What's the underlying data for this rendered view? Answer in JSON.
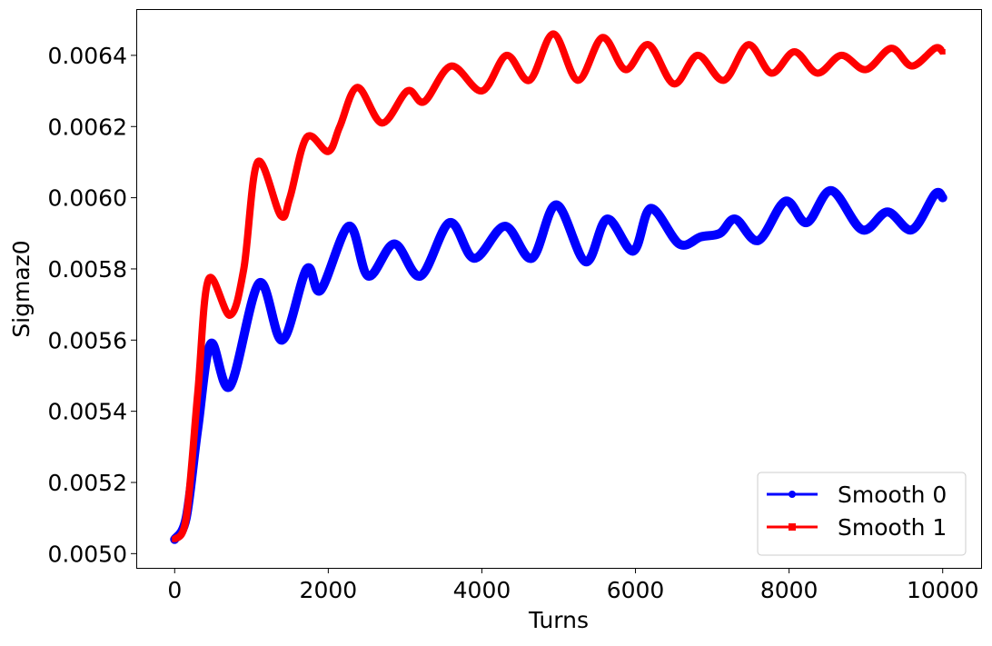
{
  "chart_data": {
    "type": "line",
    "title": "",
    "xlabel": "Turns",
    "ylabel": "Sigmaz0",
    "xlim": [
      -500,
      10500
    ],
    "ylim": [
      0.00496,
      0.00653
    ],
    "xticks": [
      0,
      2000,
      4000,
      6000,
      8000,
      10000
    ],
    "xtick_labels": [
      "0",
      "2000",
      "4000",
      "6000",
      "8000",
      "10000"
    ],
    "yticks": [
      0.005,
      0.0052,
      0.0054,
      0.0056,
      0.0058,
      0.006,
      0.0062,
      0.0064
    ],
    "ytick_labels": [
      "0.0050",
      "0.0052",
      "0.0054",
      "0.0056",
      "0.0058",
      "0.0060",
      "0.0062",
      "0.0064"
    ],
    "grid": false,
    "legend_position": "lower-right",
    "series": [
      {
        "name": "Smooth 0",
        "color": "#0000ff",
        "marker": "circle",
        "x": [
          0,
          150,
          300,
          470,
          720,
          1100,
          1400,
          1720,
          1900,
          2270,
          2520,
          2860,
          3200,
          3580,
          3900,
          4300,
          4650,
          4970,
          5350,
          5630,
          5970,
          6200,
          6570,
          6850,
          7100,
          7300,
          7600,
          7950,
          8230,
          8550,
          8950,
          9280,
          9600,
          9900,
          10000
        ],
        "y": [
          0.00504,
          0.0051,
          0.00535,
          0.00559,
          0.00547,
          0.00576,
          0.0056,
          0.0058,
          0.00574,
          0.00592,
          0.00578,
          0.00587,
          0.00578,
          0.00593,
          0.00583,
          0.00592,
          0.00583,
          0.00598,
          0.00582,
          0.00594,
          0.00585,
          0.00597,
          0.00587,
          0.00589,
          0.0059,
          0.00594,
          0.00588,
          0.00599,
          0.00593,
          0.00602,
          0.00591,
          0.00596,
          0.00591,
          0.00601,
          0.006
        ]
      },
      {
        "name": "Smooth 1",
        "color": "#ff0000",
        "marker": "square",
        "x": [
          0,
          150,
          300,
          440,
          720,
          900,
          1080,
          1380,
          1500,
          1720,
          2000,
          2150,
          2380,
          2700,
          3030,
          3250,
          3600,
          4000,
          4320,
          4620,
          4930,
          5250,
          5570,
          5870,
          6170,
          6500,
          6810,
          7150,
          7470,
          7770,
          8070,
          8370,
          8680,
          9000,
          9330,
          9600,
          9900,
          10000
        ],
        "y": [
          0.00504,
          0.0051,
          0.00545,
          0.00577,
          0.00567,
          0.0058,
          0.0061,
          0.00595,
          0.006,
          0.00617,
          0.00613,
          0.0062,
          0.00631,
          0.00621,
          0.0063,
          0.00627,
          0.00637,
          0.0063,
          0.0064,
          0.00633,
          0.00646,
          0.00633,
          0.00645,
          0.00636,
          0.00643,
          0.00632,
          0.0064,
          0.00633,
          0.00643,
          0.00635,
          0.00641,
          0.00635,
          0.0064,
          0.00636,
          0.00642,
          0.00637,
          0.00642,
          0.00641
        ]
      }
    ]
  }
}
